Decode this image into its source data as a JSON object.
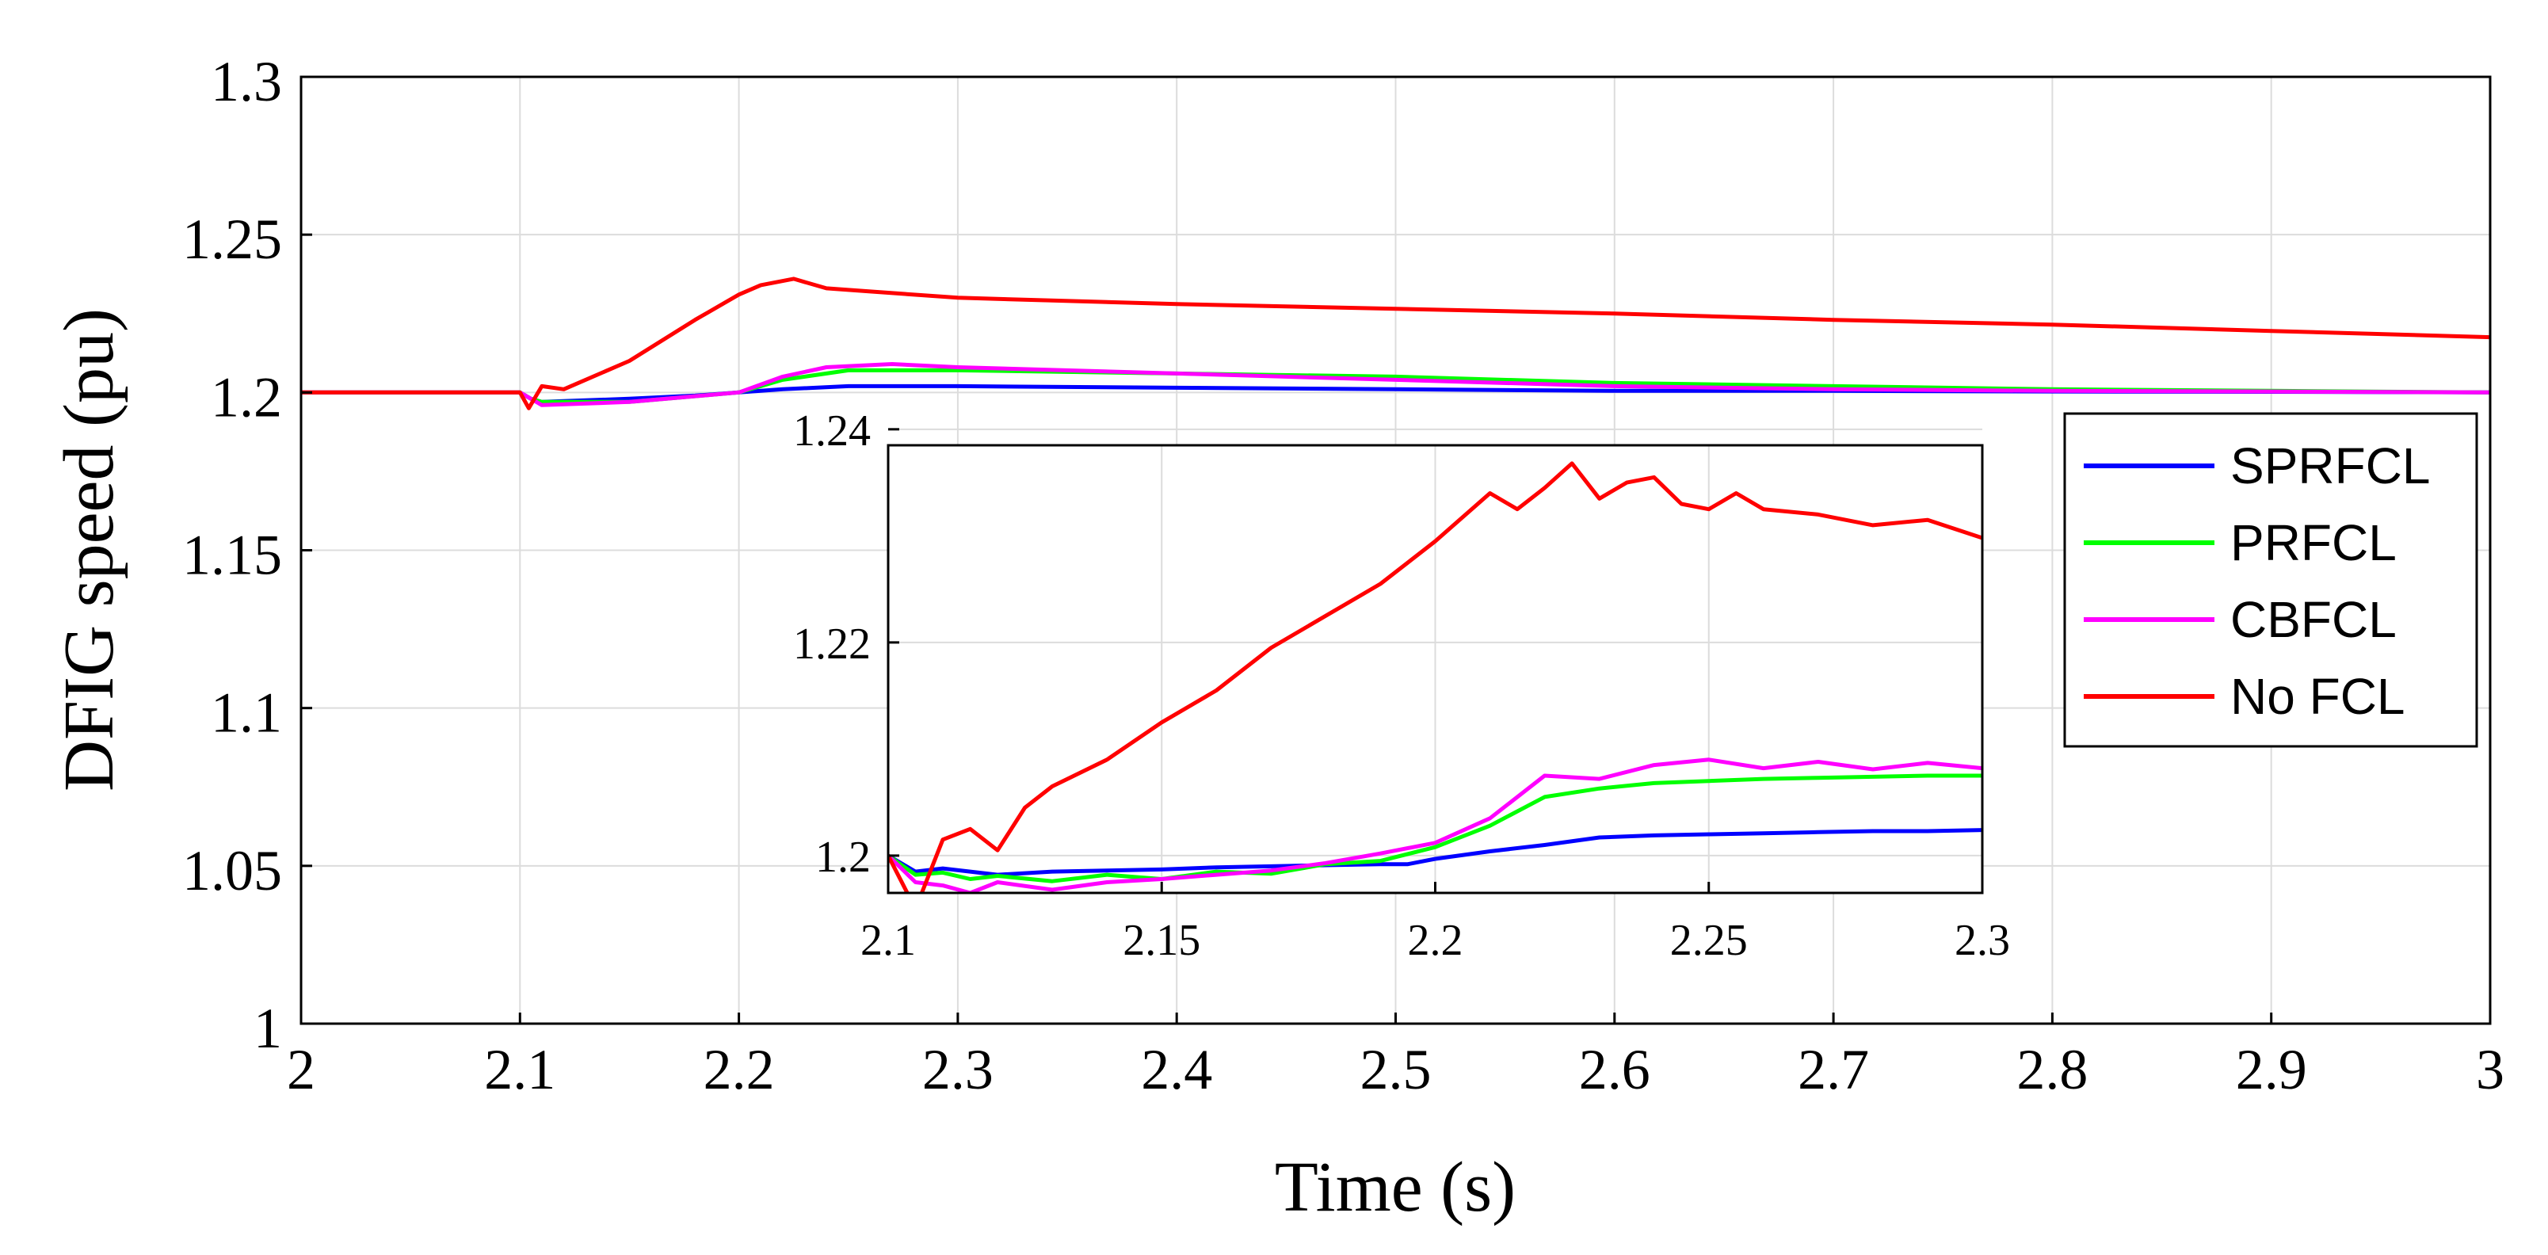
{
  "chart_data": [
    {
      "type": "line",
      "role": "main",
      "xlabel": "Time (s)",
      "ylabel": "DFIG speed (pu)",
      "xlim": [
        2,
        3
      ],
      "ylim": [
        1,
        1.3
      ],
      "xticks": [
        2,
        2.1,
        2.2,
        2.3,
        2.4,
        2.5,
        2.6,
        2.7,
        2.8,
        2.9,
        3
      ],
      "xtick_labels": [
        "2",
        "2.1",
        "2.2",
        "2.3",
        "2.4",
        "2.5",
        "2.6",
        "2.7",
        "2.8",
        "2.9",
        "3"
      ],
      "yticks": [
        1,
        1.05,
        1.1,
        1.15,
        1.2,
        1.25,
        1.3
      ],
      "ytick_labels": [
        "1",
        "1.05",
        "1.1",
        "1.15",
        "1.2",
        "1.25",
        "1.3"
      ],
      "grid": true,
      "legend_position": "right",
      "series": [
        {
          "name": "SPRFCL",
          "color": "#0000ff",
          "x": [
            2,
            2.1,
            2.105,
            2.11,
            2.15,
            2.18,
            2.2,
            2.22,
            2.25,
            2.3,
            2.4,
            2.5,
            2.6,
            2.7,
            2.8,
            2.9,
            3
          ],
          "y": [
            1.2,
            1.2,
            1.198,
            1.197,
            1.198,
            1.199,
            1.2,
            1.201,
            1.202,
            1.202,
            1.2015,
            1.201,
            1.2005,
            1.2005,
            1.2003,
            1.2002,
            1.2
          ]
        },
        {
          "name": "PRFCL",
          "color": "#00ff00",
          "x": [
            2,
            2.1,
            2.105,
            2.11,
            2.15,
            2.2,
            2.22,
            2.25,
            2.3,
            2.4,
            2.5,
            2.6,
            2.7,
            2.8,
            2.9,
            3
          ],
          "y": [
            1.2,
            1.2,
            1.198,
            1.197,
            1.197,
            1.2,
            1.204,
            1.207,
            1.207,
            1.206,
            1.205,
            1.203,
            1.202,
            1.201,
            1.2005,
            1.2
          ]
        },
        {
          "name": "CBFCL",
          "color": "#ff00ff",
          "x": [
            2,
            2.1,
            2.105,
            2.11,
            2.15,
            2.2,
            2.22,
            2.24,
            2.27,
            2.3,
            2.4,
            2.5,
            2.6,
            2.7,
            2.8,
            2.9,
            3
          ],
          "y": [
            1.2,
            1.2,
            1.198,
            1.196,
            1.197,
            1.2,
            1.205,
            1.208,
            1.209,
            1.208,
            1.206,
            1.204,
            1.202,
            1.201,
            1.2005,
            1.2003,
            1.2
          ]
        },
        {
          "name": "No FCL",
          "color": "#ff0000",
          "x": [
            2,
            2.1,
            2.104,
            2.11,
            2.12,
            2.15,
            2.18,
            2.2,
            2.21,
            2.225,
            2.24,
            2.26,
            2.3,
            2.4,
            2.5,
            2.6,
            2.7,
            2.8,
            2.9,
            3
          ],
          "y": [
            1.2,
            1.2,
            1.195,
            1.202,
            1.201,
            1.21,
            1.223,
            1.231,
            1.234,
            1.236,
            1.233,
            1.232,
            1.23,
            1.228,
            1.2265,
            1.225,
            1.223,
            1.2215,
            1.2195,
            1.2175
          ]
        }
      ]
    },
    {
      "type": "line",
      "role": "inset",
      "xlim": [
        2.1,
        2.3
      ],
      "ylim": [
        1.1965,
        1.2385
      ],
      "xticks": [
        2.1,
        2.15,
        2.2,
        2.25,
        2.3
      ],
      "xtick_labels": [
        "2.1",
        "2.15",
        "2.2",
        "2.25",
        "2.3"
      ],
      "yticks": [
        1.2,
        1.22,
        1.24
      ],
      "ytick_labels": [
        "1.2",
        "1.22",
        "1.24"
      ],
      "grid": true,
      "series": [
        {
          "name": "SPRFCL",
          "color": "#0000ff",
          "x": [
            2.1,
            2.105,
            2.11,
            2.12,
            2.13,
            2.14,
            2.15,
            2.16,
            2.17,
            2.18,
            2.19,
            2.195,
            2.2,
            2.21,
            2.22,
            2.23,
            2.24,
            2.25,
            2.26,
            2.27,
            2.28,
            2.29,
            2.3
          ],
          "y": [
            1.2,
            1.1985,
            1.1988,
            1.1982,
            1.1985,
            1.1986,
            1.1987,
            1.1989,
            1.199,
            1.1991,
            1.1992,
            1.1992,
            1.1997,
            1.2004,
            1.201,
            1.2017,
            1.2019,
            1.202,
            1.2021,
            1.2022,
            1.2023,
            1.2023,
            1.2024
          ]
        },
        {
          "name": "PRFCL",
          "color": "#00ff00",
          "x": [
            2.1,
            2.105,
            2.11,
            2.115,
            2.12,
            2.13,
            2.14,
            2.15,
            2.16,
            2.17,
            2.18,
            2.19,
            2.2,
            2.21,
            2.22,
            2.23,
            2.24,
            2.25,
            2.26,
            2.27,
            2.28,
            2.29,
            2.3
          ],
          "y": [
            1.2,
            1.1982,
            1.1984,
            1.1978,
            1.1981,
            1.1976,
            1.1982,
            1.1978,
            1.1985,
            1.1983,
            1.1992,
            1.1995,
            1.2008,
            1.2028,
            1.2055,
            1.2063,
            1.2068,
            1.207,
            1.2072,
            1.2073,
            1.2074,
            1.2075,
            1.2075
          ]
        },
        {
          "name": "CBFCL",
          "color": "#ff00ff",
          "x": [
            2.1,
            2.105,
            2.11,
            2.115,
            2.12,
            2.13,
            2.14,
            2.15,
            2.16,
            2.17,
            2.18,
            2.19,
            2.2,
            2.21,
            2.22,
            2.23,
            2.24,
            2.25,
            2.26,
            2.27,
            2.28,
            2.29,
            2.3
          ],
          "y": [
            1.2,
            1.1975,
            1.1972,
            1.1965,
            1.1975,
            1.1968,
            1.1975,
            1.1978,
            1.1982,
            1.1986,
            1.1993,
            1.2002,
            1.2012,
            1.2035,
            1.2075,
            1.2072,
            1.2085,
            1.209,
            1.2082,
            1.2088,
            1.2081,
            1.2087,
            1.2082
          ]
        },
        {
          "name": "No FCL",
          "color": "#ff0000",
          "x": [
            2.1,
            2.105,
            2.11,
            2.115,
            2.12,
            2.125,
            2.13,
            2.14,
            2.15,
            2.16,
            2.17,
            2.18,
            2.19,
            2.2,
            2.21,
            2.215,
            2.22,
            2.225,
            2.23,
            2.235,
            2.24,
            2.245,
            2.25,
            2.255,
            2.26,
            2.27,
            2.28,
            2.29,
            2.3
          ],
          "y": [
            1.2,
            1.195,
            1.2015,
            1.2025,
            1.2005,
            1.2045,
            1.2065,
            1.209,
            1.2125,
            1.2155,
            1.2195,
            1.2225,
            1.2255,
            1.2295,
            1.234,
            1.2325,
            1.2345,
            1.2368,
            1.2335,
            1.235,
            1.2355,
            1.233,
            1.2325,
            1.234,
            1.2325,
            1.232,
            1.231,
            1.2315,
            1.2298
          ]
        }
      ]
    }
  ]
}
